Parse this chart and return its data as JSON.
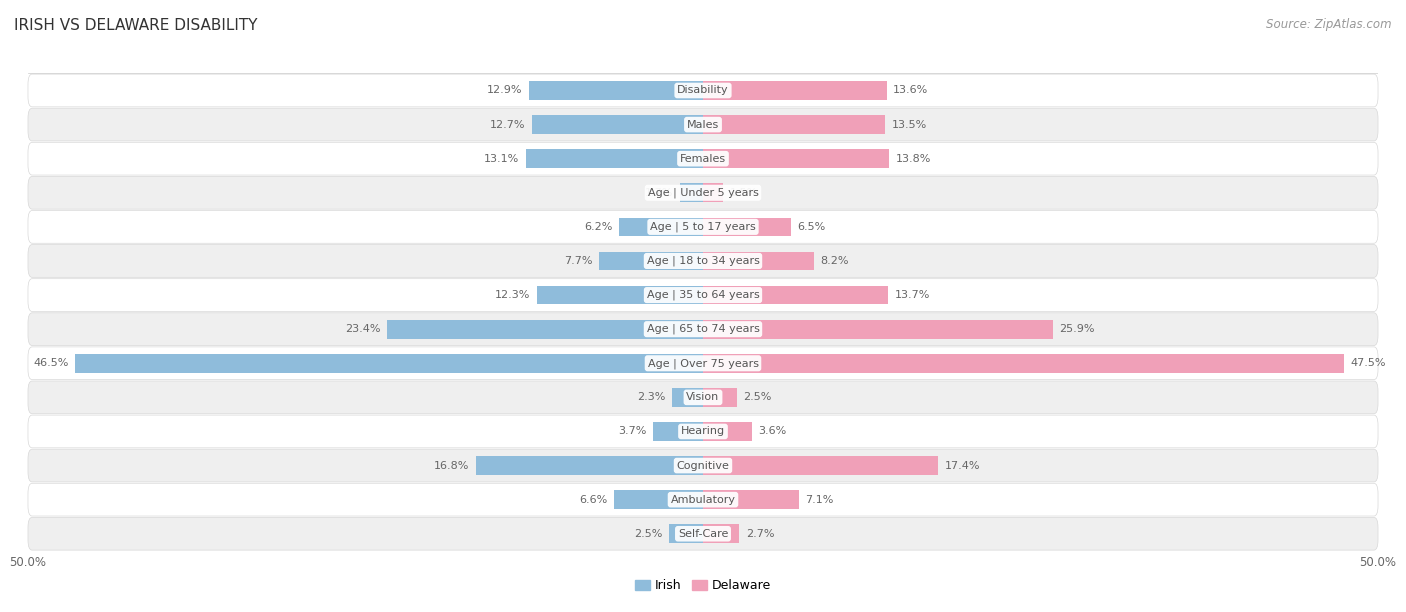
{
  "title": "IRISH VS DELAWARE DISABILITY",
  "source": "Source: ZipAtlas.com",
  "categories": [
    "Disability",
    "Males",
    "Females",
    "Age | Under 5 years",
    "Age | 5 to 17 years",
    "Age | 18 to 34 years",
    "Age | 35 to 64 years",
    "Age | 65 to 74 years",
    "Age | Over 75 years",
    "Vision",
    "Hearing",
    "Cognitive",
    "Ambulatory",
    "Self-Care"
  ],
  "irish_values": [
    12.9,
    12.7,
    13.1,
    1.7,
    6.2,
    7.7,
    12.3,
    23.4,
    46.5,
    2.3,
    3.7,
    16.8,
    6.6,
    2.5
  ],
  "delaware_values": [
    13.6,
    13.5,
    13.8,
    1.5,
    6.5,
    8.2,
    13.7,
    25.9,
    47.5,
    2.5,
    3.6,
    17.4,
    7.1,
    2.7
  ],
  "irish_color": "#8FBCDB",
  "delaware_color": "#F0A0B8",
  "irish_label": "Irish",
  "delaware_label": "Delaware",
  "x_max": 50.0,
  "x_min": -50.0,
  "background_color": "#ffffff",
  "row_bg_odd": "#ffffff",
  "row_bg_even": "#efefef",
  "row_border_color": "#d8d8d8",
  "title_fontsize": 11,
  "source_fontsize": 8.5,
  "bar_height": 0.55,
  "value_fontsize": 8,
  "category_fontsize": 8
}
